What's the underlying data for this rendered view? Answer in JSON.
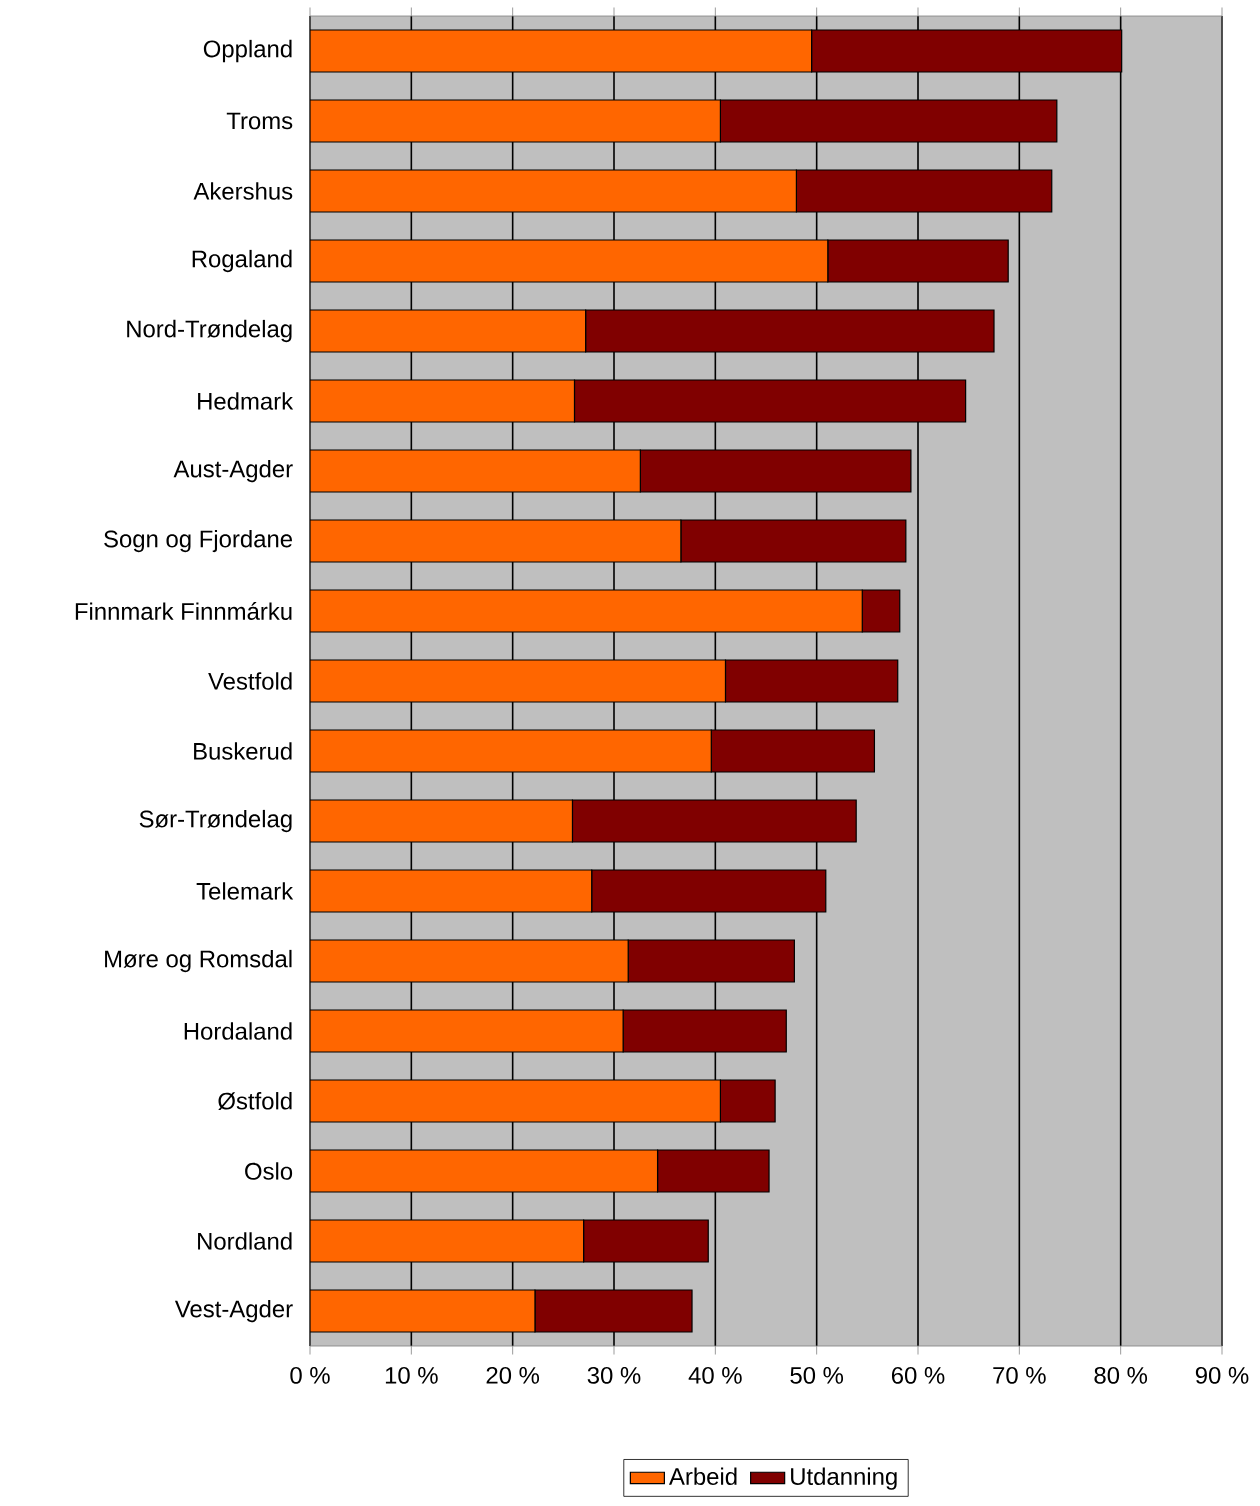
{
  "chart_data": {
    "type": "bar",
    "orientation": "horizontal",
    "stacked": true,
    "categories": [
      "Oppland",
      "Troms",
      "Akershus",
      "Rogaland",
      "Nord-Trøndelag",
      "Hedmark",
      "Aust-Agder",
      "Sogn og Fjordane",
      "Finnmark Finnmárku",
      "Vestfold",
      "Buskerud",
      "Sør-Trøndelag",
      "Telemark",
      "Møre og Romsdal",
      "Hordaland",
      "Østfold",
      "Oslo",
      "Nordland",
      "Vest-Agder"
    ],
    "series": [
      {
        "name": "Arbeid",
        "color": "#ff6600",
        "values": [
          49.5,
          40.5,
          48.0,
          51.1,
          27.2,
          26.1,
          32.6,
          36.6,
          54.5,
          41.0,
          39.6,
          25.9,
          27.8,
          31.4,
          30.9,
          40.5,
          34.3,
          27.0,
          22.2
        ]
      },
      {
        "name": "Utdanning",
        "color": "#800000",
        "values": [
          30.6,
          33.2,
          25.2,
          17.8,
          40.3,
          38.6,
          26.7,
          22.2,
          3.7,
          17.0,
          16.1,
          28.0,
          23.1,
          16.4,
          16.1,
          5.4,
          11.0,
          12.3,
          15.5
        ]
      }
    ],
    "xlim": [
      0,
      90
    ],
    "xticks": [
      {
        "value": 0,
        "label": "0 %"
      },
      {
        "value": 10,
        "label": "10 %"
      },
      {
        "value": 20,
        "label": "20 %"
      },
      {
        "value": 30,
        "label": "30 %"
      },
      {
        "value": 40,
        "label": "40 %"
      },
      {
        "value": 50,
        "label": "50 %"
      },
      {
        "value": 60,
        "label": "60 %"
      },
      {
        "value": 70,
        "label": "70 %"
      },
      {
        "value": 80,
        "label": "80 %"
      },
      {
        "value": 90,
        "label": "90 %"
      }
    ],
    "grid": "x",
    "legend": "bottom"
  }
}
